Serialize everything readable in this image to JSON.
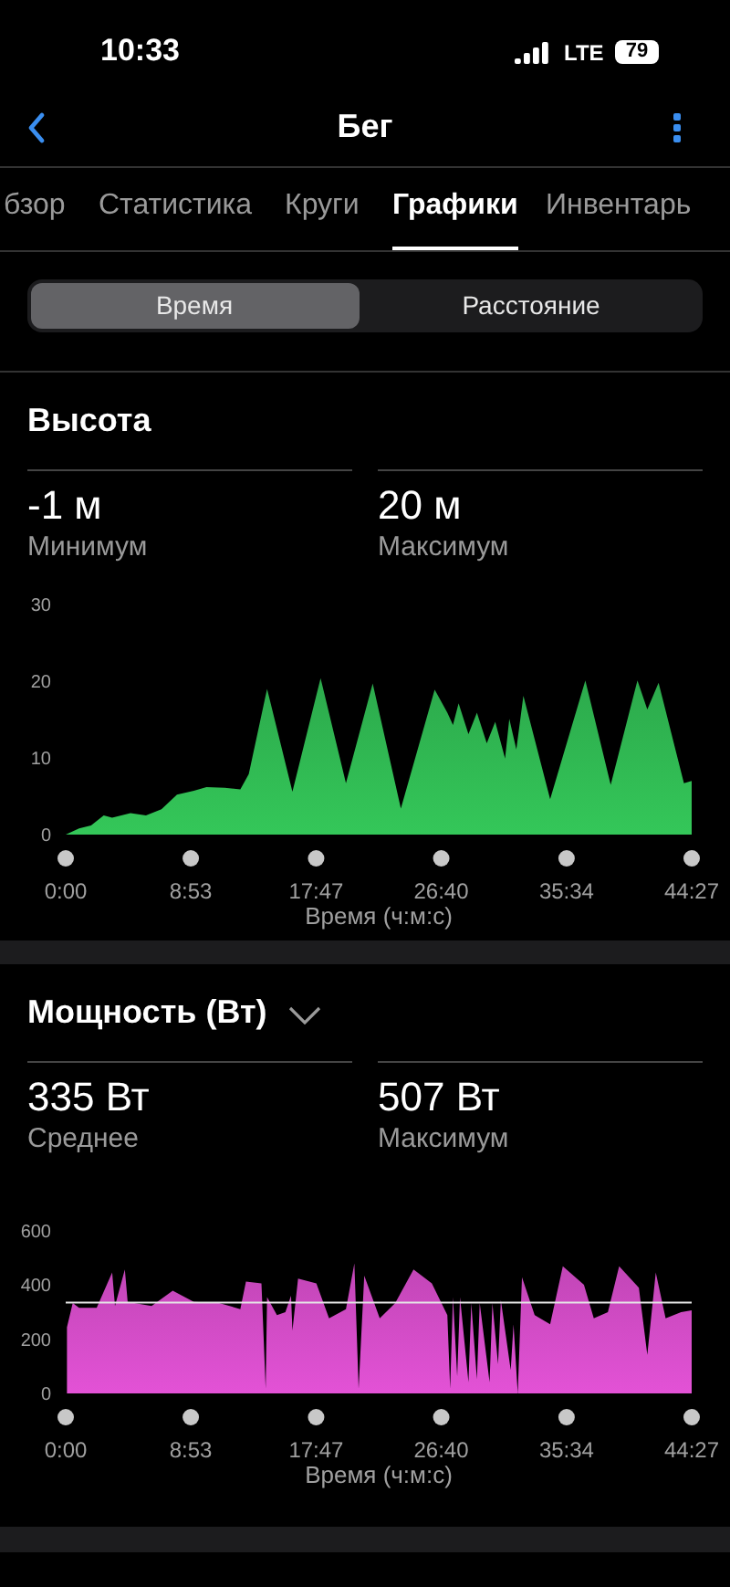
{
  "chart_data": [
    {
      "type": "other",
      "title": "Бег",
      "annotations": [
        "10:33",
        "LTE",
        "79",
        "бзор",
        "Статистика",
        "Круги",
        "Графики",
        "Инвентарь",
        "Время",
        "Расстояние"
      ]
    },
    {
      "type": "area",
      "title": "Высота",
      "annotations": [
        "-1 м",
        "Минимум",
        "20 м",
        "Максимум"
      ],
      "xlabel": "Время (ч:м:с)",
      "x": [
        0,
        0.95,
        1.8,
        2.7,
        3.3,
        4.6,
        5.7,
        6.8,
        7.9,
        9.1,
        10.0,
        11.3,
        12.4,
        13.0,
        14.3,
        16.1,
        18.1,
        19.9,
        21.8,
        23.8,
        26.2,
        27.1,
        27.5,
        27.9,
        28.6,
        29.2,
        29.9,
        30.5,
        31.2,
        31.5,
        32.0,
        32.5,
        34.4,
        36.9,
        38.7,
        40.6,
        41.3,
        42.1,
        43.9,
        44.45
      ],
      "series": [
        {
          "color": "#34c759",
          "values": [
            0,
            0.8,
            1.2,
            2.5,
            2.2,
            2.8,
            2.5,
            3.3,
            5.2,
            5.7,
            6.2,
            6.1,
            5.9,
            7.9,
            19,
            5.6,
            20.4,
            6.7,
            19.7,
            3.4,
            18.9,
            15.9,
            14.3,
            17.1,
            13.1,
            15.9,
            11.9,
            14.7,
            9.9,
            15.1,
            11.1,
            18.1,
            4.6,
            20.1,
            6.5,
            20.1,
            16.3,
            19.8,
            6.7,
            7
          ]
        }
      ],
      "xlim": [
        0,
        44.45
      ],
      "xticks": [
        {
          "value": 0,
          "label": "0:00"
        },
        {
          "value": 8.883,
          "label": "8:53"
        },
        {
          "value": 17.783,
          "label": "17:47"
        },
        {
          "value": 26.667,
          "label": "26:40"
        },
        {
          "value": 35.567,
          "label": "35:34"
        },
        {
          "value": 44.45,
          "label": "44:27"
        }
      ],
      "ylim": [
        0,
        30
      ],
      "yticks": [
        0,
        10,
        20,
        30
      ]
    },
    {
      "type": "area",
      "title": "Мощность (Вт)",
      "annotations": [
        "335 Вт",
        "Среднее",
        "507 Вт",
        "Максимум"
      ],
      "xlabel": "Время (ч:м:с)",
      "x": [
        0.09,
        0.5,
        0.95,
        2.2,
        3.3,
        3.5,
        4.2,
        4.4,
        6.1,
        7.6,
        9.1,
        10.9,
        12.4,
        12.8,
        13.9,
        14.2,
        14.3,
        15.0,
        15.6,
        16.0,
        16.1,
        16.5,
        17.8,
        18.7,
        19.9,
        20.5,
        20.8,
        21.2,
        22.3,
        23.4,
        24.7,
        26.0,
        27.1,
        27.3,
        27.5,
        27.8,
        28.0,
        28.6,
        28.8,
        29.2,
        29.4,
        30.1,
        30.3,
        30.7,
        30.9,
        31.6,
        31.8,
        32.1,
        32.4,
        33.3,
        34.4,
        35.3,
        36.8,
        37.5,
        38.5,
        39.3,
        40.7,
        41.3,
        41.9,
        42.6,
        43.7,
        44.45
      ],
      "series": [
        {
          "color": "#e352d6",
          "values": [
            244,
            334,
            316,
            316,
            447,
            323,
            458,
            338,
            323,
            379,
            338,
            334,
            311,
            413,
            406,
            18,
            356,
            289,
            300,
            361,
            232,
            424,
            406,
            277,
            311,
            480,
            18,
            435,
            277,
            334,
            458,
            406,
            289,
            18,
            356,
            63,
            356,
            41,
            334,
            52,
            334,
            41,
            334,
            108,
            345,
            86,
            255,
            0,
            429,
            289,
            255,
            469,
            401,
            277,
            300,
            469,
            390,
            142,
            447,
            277,
            300,
            307
          ]
        }
      ],
      "ref_lines": [
        {
          "axis": "y",
          "value": 335,
          "color": "#e6e6e6"
        }
      ],
      "xlim": [
        0,
        44.45
      ],
      "xticks": [
        {
          "value": 0,
          "label": "0:00"
        },
        {
          "value": 8.883,
          "label": "8:53"
        },
        {
          "value": 17.783,
          "label": "17:47"
        },
        {
          "value": 26.667,
          "label": "26:40"
        },
        {
          "value": 35.567,
          "label": "35:34"
        },
        {
          "value": 44.45,
          "label": "44:27"
        }
      ],
      "ylim": [
        0,
        600
      ],
      "yticks": [
        0,
        200,
        400,
        600
      ]
    }
  ]
}
